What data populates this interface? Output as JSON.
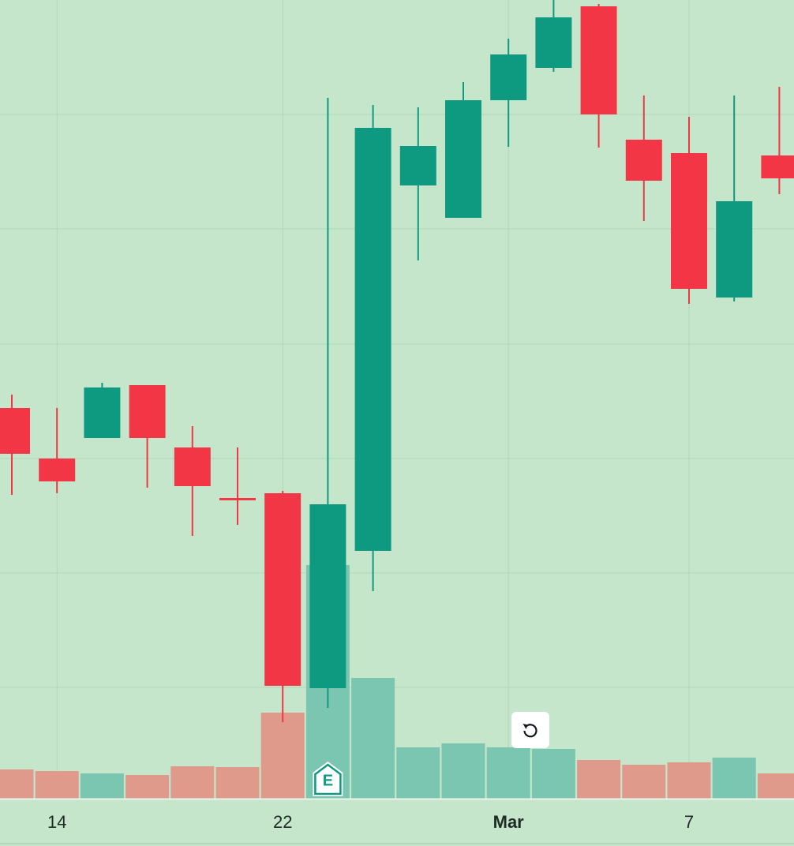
{
  "chart_data": {
    "type": "candlestick",
    "categories": [
      null,
      "14",
      null,
      null,
      null,
      null,
      "22",
      null,
      null,
      null,
      null,
      "Mar",
      null,
      null,
      null,
      "7",
      null,
      null
    ],
    "open": [
      55.5,
      49.1,
      51.7,
      58.4,
      50.5,
      44.1,
      44.7,
      20.0,
      37.4,
      83.7,
      79.6,
      94.5,
      98.6,
      106.4,
      89.5,
      87.8,
      69.5,
      87.5
    ],
    "high": [
      57.2,
      55.5,
      58.7,
      58.4,
      53.2,
      50.5,
      45.0,
      94.8,
      93.9,
      93.6,
      96.8,
      102.3,
      107.2,
      106.7,
      95.1,
      92.4,
      95.1,
      96.2
    ],
    "low": [
      44.5,
      44.7,
      51.7,
      45.4,
      39.3,
      40.7,
      15.7,
      17.5,
      32.3,
      74.2,
      79.6,
      88.6,
      98.1,
      88.5,
      79.2,
      68.7,
      69.0,
      82.6
    ],
    "close": [
      49.7,
      46.2,
      58.1,
      51.7,
      45.6,
      43.8,
      20.3,
      43.3,
      91.0,
      88.7,
      94.5,
      100.3,
      105.0,
      92.7,
      84.3,
      70.6,
      81.7,
      84.6
    ],
    "volume": [
      37,
      35,
      32,
      30,
      41,
      40,
      109,
      296,
      153,
      65,
      70,
      65,
      63,
      49,
      43,
      46,
      52,
      32
    ],
    "up_color": "#0e9981",
    "down_color": "#f23645",
    "up_volume_color": "#7bc6b0",
    "down_volume_color": "#e09a8c",
    "ylim": [
      0,
      107.2
    ],
    "yticks": [
      20.1,
      34.6,
      49.1,
      63.6,
      78.2,
      92.7
    ],
    "y2lim": [
      0,
      1012
    ],
    "grid": true,
    "bold_categories": [
      "Mar"
    ],
    "earnings_marker": {
      "index": 7,
      "label": "E"
    }
  }
}
